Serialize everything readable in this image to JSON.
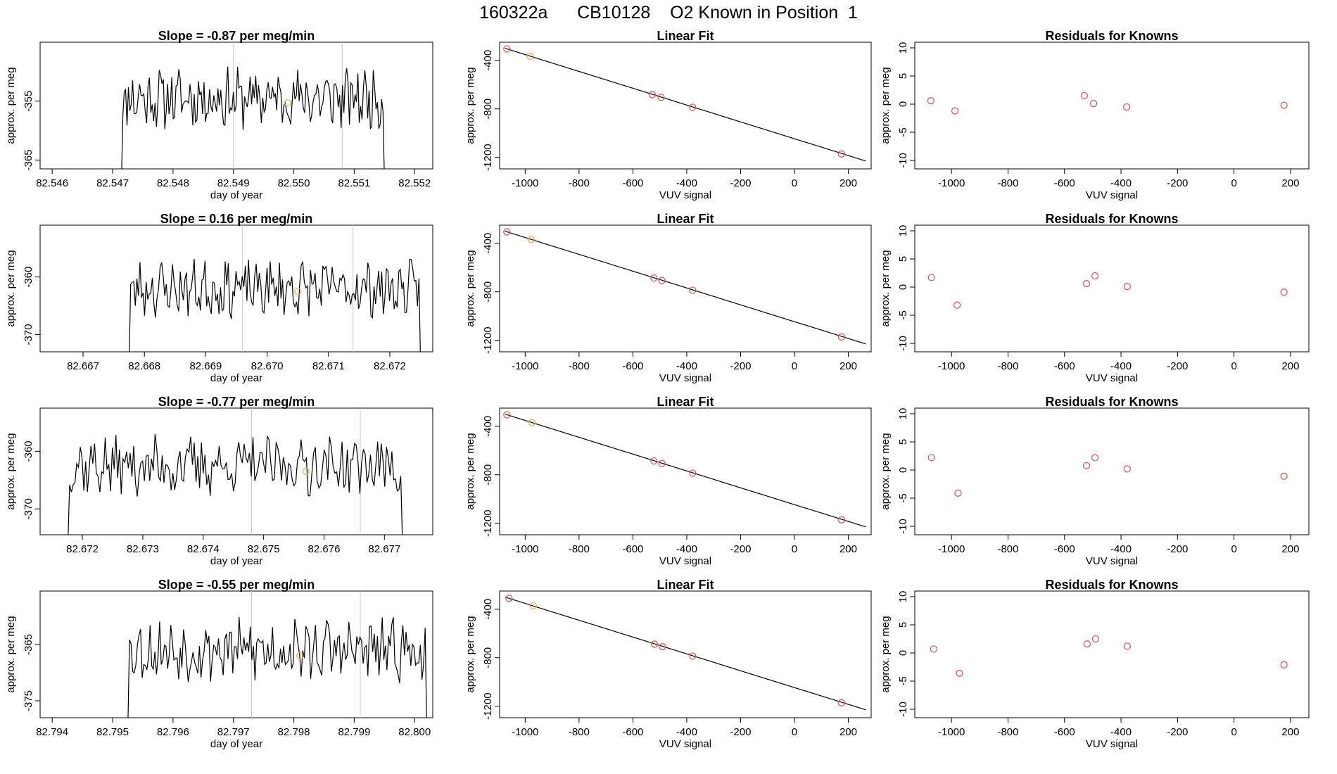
{
  "figure": {
    "title": "160322a      CB10128    O2 Known in Position  1",
    "colors": {
      "line": "#000000",
      "known_point": "#d85a5a",
      "sample_point": "#f0b04a",
      "vline": "#c8c8c8",
      "axis": "#000000"
    }
  },
  "chart_data": [
    {
      "type": "line",
      "row": 1,
      "col": 1,
      "title": "Slope =  -0.87  per meg/min",
      "xlabel": "day of year",
      "ylabel": "approx. per meg",
      "xlim": [
        82.5458,
        82.5523
      ],
      "ylim": [
        -366.5,
        -345.0
      ],
      "xticks": [
        82.546,
        82.547,
        82.548,
        82.549,
        82.55,
        82.551,
        82.552
      ],
      "xticklabels": [
        "82.546",
        "82.547",
        "82.548",
        "82.549",
        "82.550",
        "82.551",
        "82.552"
      ],
      "yticks": [
        -355,
        -365
      ],
      "yticklabels": [
        "-355",
        "-365"
      ],
      "x_start": 82.5471,
      "x_end": 82.5515,
      "seed": 11,
      "base": -354.5,
      "amp": 4.2,
      "vlines": [
        82.549,
        82.5508
      ],
      "marker": {
        "x": 82.5499,
        "y": -355.3
      }
    },
    {
      "type": "scatter",
      "row": 1,
      "col": 2,
      "title": "Linear Fit",
      "xlabel": "VUV signal",
      "ylabel": "approx. per meg",
      "xlim": [
        -1095,
        285
      ],
      "ylim": [
        -1295,
        -250
      ],
      "xticks": [
        -1000,
        -800,
        -600,
        -400,
        -200,
        0,
        200
      ],
      "xticklabels": [
        "-1000",
        "-800",
        "-600",
        "-400",
        "-200",
        "0",
        "200"
      ],
      "yticks": [
        -400,
        -800,
        -1200
      ],
      "yticklabels": [
        "-400",
        "-800",
        "-1200"
      ],
      "fit_line": [
        [
          -1075,
          -300
        ],
        [
          265,
          -1230
        ]
      ],
      "points": [
        {
          "x": -1068,
          "y": -305,
          "color": "#d85a5a"
        },
        {
          "x": -982,
          "y": -365,
          "color": "#f0b04a"
        },
        {
          "x": -528,
          "y": -683,
          "color": "#d85a5a"
        },
        {
          "x": -495,
          "y": -705,
          "color": "#d85a5a"
        },
        {
          "x": -378,
          "y": -787,
          "color": "#d85a5a"
        },
        {
          "x": 175,
          "y": -1172,
          "color": "#d85a5a"
        }
      ]
    },
    {
      "type": "scatter",
      "row": 1,
      "col": 3,
      "title": "Residuals for Knowns",
      "xlabel": "VUV signal",
      "ylabel": "approx. per meg",
      "xlim": [
        -1130,
        265
      ],
      "ylim": [
        -11.5,
        11
      ],
      "xticks": [
        -1000,
        -800,
        -600,
        -400,
        -200,
        0,
        200
      ],
      "xticklabels": [
        "-1000",
        "-800",
        "-600",
        "-400",
        "-200",
        "0",
        "200"
      ],
      "yticks": [
        10,
        5,
        0,
        -5,
        -10
      ],
      "yticklabels": [
        "10",
        "5",
        "0",
        "-5",
        "-10"
      ],
      "points": [
        {
          "x": -1073,
          "y": 0.6,
          "color": "#d85a5a"
        },
        {
          "x": -988,
          "y": -1.2,
          "color": "#d85a5a"
        },
        {
          "x": -530,
          "y": 1.5,
          "color": "#d85a5a"
        },
        {
          "x": -497,
          "y": 0.1,
          "color": "#d85a5a"
        },
        {
          "x": -380,
          "y": -0.5,
          "color": "#d85a5a"
        },
        {
          "x": 177,
          "y": -0.2,
          "color": "#d85a5a"
        }
      ]
    },
    {
      "type": "line",
      "row": 2,
      "col": 1,
      "title": "Slope =  0.16  per meg/min",
      "xlabel": "day of year",
      "ylabel": "approx. per meg",
      "xlim": [
        82.6663,
        82.6727
      ],
      "ylim": [
        -373.0,
        -351.0
      ],
      "xticks": [
        82.667,
        82.668,
        82.669,
        82.67,
        82.671,
        82.672
      ],
      "xticklabels": [
        "82.667",
        "82.668",
        "82.669",
        "82.670",
        "82.671",
        "82.672"
      ],
      "yticks": [
        -360,
        -370
      ],
      "yticklabels": [
        "-360",
        "-370"
      ],
      "x_start": 82.6677,
      "x_end": 82.6725,
      "seed": 23,
      "base": -362.0,
      "amp": 4.0,
      "vlines": [
        82.6696,
        82.6714
      ],
      "marker": {
        "x": 82.6705,
        "y": -362.5
      }
    },
    {
      "type": "scatter",
      "row": 2,
      "col": 2,
      "title": "Linear Fit",
      "xlabel": "VUV signal",
      "ylabel": "approx. per meg",
      "xlim": [
        -1095,
        285
      ],
      "ylim": [
        -1295,
        -250
      ],
      "xticks": [
        -1000,
        -800,
        -600,
        -400,
        -200,
        0,
        200
      ],
      "xticklabels": [
        "-1000",
        "-800",
        "-600",
        "-400",
        "-200",
        "0",
        "200"
      ],
      "yticks": [
        -400,
        -800,
        -1200
      ],
      "yticklabels": [
        "-400",
        "-800",
        "-1200"
      ],
      "fit_line": [
        [
          -1075,
          -300
        ],
        [
          265,
          -1230
        ]
      ],
      "points": [
        {
          "x": -1068,
          "y": -305,
          "color": "#d85a5a"
        },
        {
          "x": -978,
          "y": -368,
          "color": "#f0b04a"
        },
        {
          "x": -522,
          "y": -686,
          "color": "#d85a5a"
        },
        {
          "x": -492,
          "y": -707,
          "color": "#d85a5a"
        },
        {
          "x": -378,
          "y": -787,
          "color": "#d85a5a"
        },
        {
          "x": 175,
          "y": -1172,
          "color": "#d85a5a"
        }
      ]
    },
    {
      "type": "scatter",
      "row": 2,
      "col": 3,
      "title": "Residuals for Knowns",
      "xlabel": "VUV signal",
      "ylabel": "approx. per meg",
      "xlim": [
        -1130,
        265
      ],
      "ylim": [
        -11.5,
        11
      ],
      "xticks": [
        -1000,
        -800,
        -600,
        -400,
        -200,
        0,
        200
      ],
      "xticklabels": [
        "-1000",
        "-800",
        "-600",
        "-400",
        "-200",
        "0",
        "200"
      ],
      "yticks": [
        10,
        5,
        0,
        -5,
        -10
      ],
      "yticklabels": [
        "10",
        "5",
        "0",
        "-5",
        "-10"
      ],
      "points": [
        {
          "x": -1071,
          "y": 1.7,
          "color": "#d85a5a"
        },
        {
          "x": -980,
          "y": -3.2,
          "color": "#d85a5a"
        },
        {
          "x": -522,
          "y": 0.6,
          "color": "#d85a5a"
        },
        {
          "x": -492,
          "y": 2.0,
          "color": "#d85a5a"
        },
        {
          "x": -378,
          "y": 0.1,
          "color": "#d85a5a"
        },
        {
          "x": 177,
          "y": -0.9,
          "color": "#d85a5a"
        }
      ]
    },
    {
      "type": "line",
      "row": 3,
      "col": 1,
      "title": "Slope =  -0.77  per meg/min",
      "xlabel": "day of year",
      "ylabel": "approx. per meg",
      "xlim": [
        82.6713,
        82.6778
      ],
      "ylim": [
        -374.5,
        -352.5
      ],
      "xticks": [
        82.672,
        82.673,
        82.674,
        82.675,
        82.676,
        82.677
      ],
      "xticklabels": [
        "82.672",
        "82.673",
        "82.674",
        "82.675",
        "82.676",
        "82.677"
      ],
      "yticks": [
        -360,
        -370
      ],
      "yticklabels": [
        "-360",
        "-370"
      ],
      "x_start": 82.6717,
      "x_end": 82.6773,
      "seed": 37,
      "base": -362.5,
      "amp": 4.3,
      "vlines": [
        82.6748,
        82.6766
      ],
      "marker": {
        "x": 82.6757,
        "y": -363.5
      }
    },
    {
      "type": "scatter",
      "row": 3,
      "col": 2,
      "title": "Linear Fit",
      "xlabel": "VUV signal",
      "ylabel": "approx. per meg",
      "xlim": [
        -1095,
        285
      ],
      "ylim": [
        -1295,
        -250
      ],
      "xticks": [
        -1000,
        -800,
        -600,
        -400,
        -200,
        0,
        200
      ],
      "xticklabels": [
        "-1000",
        "-800",
        "-600",
        "-400",
        "-200",
        "0",
        "200"
      ],
      "yticks": [
        -400,
        -800,
        -1200
      ],
      "yticklabels": [
        "-400",
        "-800",
        "-1200"
      ],
      "fit_line": [
        [
          -1075,
          -300
        ],
        [
          265,
          -1230
        ]
      ],
      "points": [
        {
          "x": -1068,
          "y": -305,
          "color": "#d85a5a"
        },
        {
          "x": -975,
          "y": -370,
          "color": "#f0b04a"
        },
        {
          "x": -522,
          "y": -686,
          "color": "#d85a5a"
        },
        {
          "x": -492,
          "y": -707,
          "color": "#d85a5a"
        },
        {
          "x": -378,
          "y": -787,
          "color": "#d85a5a"
        },
        {
          "x": 175,
          "y": -1172,
          "color": "#d85a5a"
        }
      ]
    },
    {
      "type": "scatter",
      "row": 3,
      "col": 3,
      "title": "Residuals for Knowns",
      "xlabel": "VUV signal",
      "ylabel": "approx. per meg",
      "xlim": [
        -1130,
        265
      ],
      "ylim": [
        -11.5,
        11
      ],
      "xticks": [
        -1000,
        -800,
        -600,
        -400,
        -200,
        0,
        200
      ],
      "xticklabels": [
        "-1000",
        "-800",
        "-600",
        "-400",
        "-200",
        "0",
        "200"
      ],
      "yticks": [
        10,
        5,
        0,
        -5,
        -10
      ],
      "yticklabels": [
        "10",
        "5",
        "0",
        "-5",
        "-10"
      ],
      "points": [
        {
          "x": -1071,
          "y": 2.2,
          "color": "#d85a5a"
        },
        {
          "x": -977,
          "y": -4.1,
          "color": "#d85a5a"
        },
        {
          "x": -522,
          "y": 0.8,
          "color": "#d85a5a"
        },
        {
          "x": -492,
          "y": 2.2,
          "color": "#d85a5a"
        },
        {
          "x": -378,
          "y": 0.2,
          "color": "#d85a5a"
        },
        {
          "x": 177,
          "y": -1.1,
          "color": "#d85a5a"
        }
      ]
    },
    {
      "type": "line",
      "row": 4,
      "col": 1,
      "title": "Slope =  -0.55  per meg/min",
      "xlabel": "day of year",
      "ylabel": "approx. per meg",
      "xlim": [
        82.7938,
        82.8003
      ],
      "ylim": [
        -378.0,
        -355.5
      ],
      "xticks": [
        82.794,
        82.795,
        82.796,
        82.797,
        82.798,
        82.799,
        82.8
      ],
      "xticklabels": [
        "82.794",
        "82.795",
        "82.796",
        "82.797",
        "82.798",
        "82.799",
        "82.800"
      ],
      "yticks": [
        -365,
        -375
      ],
      "yticklabels": [
        "-365",
        "-375"
      ],
      "x_start": 82.7952,
      "x_end": 82.8002,
      "seed": 53,
      "base": -366.0,
      "amp": 4.5,
      "vlines": [
        82.7973,
        82.7991
      ],
      "marker": {
        "x": 82.7981,
        "y": -367.0
      }
    },
    {
      "type": "scatter",
      "row": 4,
      "col": 2,
      "title": "Linear Fit",
      "xlabel": "VUV signal",
      "ylabel": "approx. per meg",
      "xlim": [
        -1095,
        285
      ],
      "ylim": [
        -1295,
        -250
      ],
      "xticks": [
        -1000,
        -800,
        -600,
        -400,
        -200,
        0,
        200
      ],
      "xticklabels": [
        "-1000",
        "-800",
        "-600",
        "-400",
        "-200",
        "0",
        "200"
      ],
      "yticks": [
        -400,
        -800,
        -1200
      ],
      "yticklabels": [
        "-400",
        "-800",
        "-1200"
      ],
      "fit_line": [
        [
          -1075,
          -300
        ],
        [
          265,
          -1230
        ]
      ],
      "points": [
        {
          "x": -1060,
          "y": -310,
          "color": "#d85a5a"
        },
        {
          "x": -970,
          "y": -372,
          "color": "#f0b04a"
        },
        {
          "x": -520,
          "y": -688,
          "color": "#d85a5a"
        },
        {
          "x": -490,
          "y": -709,
          "color": "#d85a5a"
        },
        {
          "x": -378,
          "y": -787,
          "color": "#d85a5a"
        },
        {
          "x": 175,
          "y": -1172,
          "color": "#d85a5a"
        }
      ]
    },
    {
      "type": "scatter",
      "row": 4,
      "col": 3,
      "title": "Residuals for Knowns",
      "xlabel": "VUV signal",
      "ylabel": "approx. per meg",
      "xlim": [
        -1130,
        265
      ],
      "ylim": [
        -11.5,
        11
      ],
      "xticks": [
        -1000,
        -800,
        -600,
        -400,
        -200,
        0,
        200
      ],
      "xticklabels": [
        "-1000",
        "-800",
        "-600",
        "-400",
        "-200",
        "0",
        "200"
      ],
      "yticks": [
        10,
        5,
        0,
        -5,
        -10
      ],
      "yticklabels": [
        "10",
        "5",
        "0",
        "-5",
        "-10"
      ],
      "points": [
        {
          "x": -1063,
          "y": 0.7,
          "color": "#d85a5a"
        },
        {
          "x": -972,
          "y": -3.6,
          "color": "#d85a5a"
        },
        {
          "x": -520,
          "y": 1.6,
          "color": "#d85a5a"
        },
        {
          "x": -490,
          "y": 2.5,
          "color": "#d85a5a"
        },
        {
          "x": -378,
          "y": 1.2,
          "color": "#d85a5a"
        },
        {
          "x": 177,
          "y": -2.1,
          "color": "#d85a5a"
        }
      ]
    }
  ]
}
